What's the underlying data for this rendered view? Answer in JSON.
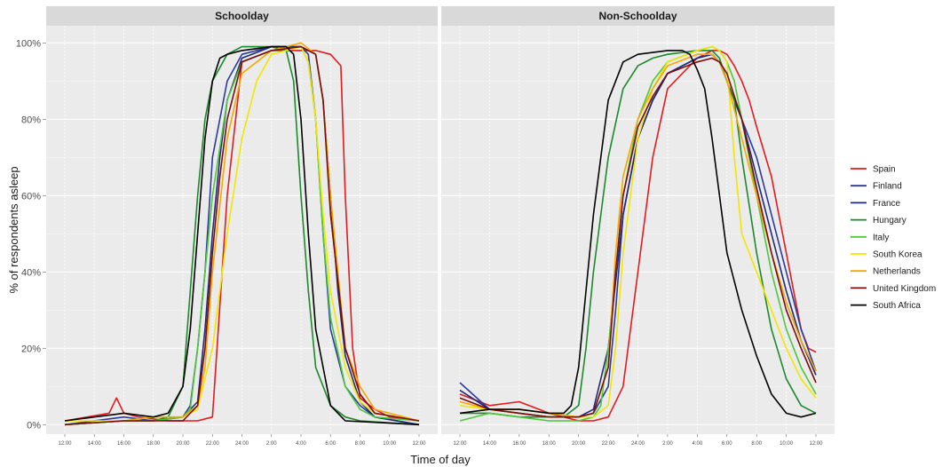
{
  "chart_data": {
    "type": "line",
    "xlabel": "Time of day",
    "ylabel": "% of respondents asleep",
    "ylim": [
      0,
      100
    ],
    "y_ticks": [
      0,
      20,
      40,
      60,
      80,
      100
    ],
    "y_tick_labels": [
      "0%",
      "20%",
      "40%",
      "60%",
      "80%",
      "100%"
    ],
    "x_tick_labels": [
      "12:00",
      "14:00",
      "16:00",
      "18:00",
      "20:00",
      "22:00",
      "24:00",
      "2:00",
      "4:00",
      "6:00",
      "8:00",
      "10:00",
      "12:00"
    ],
    "x_tick_hours": [
      12,
      14,
      16,
      18,
      20,
      22,
      24,
      26,
      28,
      30,
      32,
      34,
      36
    ],
    "xlim_hours": [
      12,
      36
    ],
    "legend_position": "right",
    "legend_entries": [
      "Spain",
      "Finland",
      "France",
      "Hungary",
      "Italy",
      "South Korea",
      "Netherlands",
      "United Kingdom",
      "South Africa"
    ],
    "colors": {
      "Spain": "#e41a1c",
      "Finland": "#2b3a9e",
      "France": "#1f2a7a",
      "Hungary": "#1a8a2a",
      "Italy": "#4cc83a",
      "South Korea": "#f2e600",
      "Netherlands": "#f5a700",
      "United Kingdom": "#7a0d0d",
      "South Africa": "#000000"
    },
    "panels": [
      {
        "title": "Schoolday",
        "series": [
          {
            "name": "Spain",
            "hours": [
              12,
              15,
              15.5,
              16,
              17,
              19,
              20,
              21,
              22,
              23,
              24,
              26,
              28,
              29,
              30,
              30.7,
              31,
              31.5,
              32,
              33,
              34,
              36
            ],
            "values": [
              1,
              3,
              7,
              3,
              2,
              1,
              1,
              1,
              2,
              60,
              95,
              98,
              98,
              98,
              97,
              94,
              60,
              20,
              7,
              4,
              2,
              1
            ]
          },
          {
            "name": "Finland",
            "hours": [
              12,
              16,
              18,
              20,
              20.5,
              21,
              21.5,
              22,
              23,
              24,
              26,
              28,
              28.5,
              29,
              29.5,
              30,
              31,
              32,
              33,
              36
            ],
            "values": [
              0,
              2,
              1,
              2,
              5,
              20,
              40,
              70,
              90,
              97,
              99,
              99,
              97,
              80,
              50,
              25,
              10,
              5,
              2,
              0
            ]
          },
          {
            "name": "France",
            "hours": [
              12,
              16,
              18,
              20,
              21,
              21.5,
              22,
              22.5,
              23,
              24,
              26,
              28,
              29,
              29.5,
              30,
              30.5,
              31,
              32,
              33,
              36
            ],
            "values": [
              0,
              1,
              1,
              2,
              6,
              25,
              50,
              70,
              85,
              96,
              99,
              99,
              97,
              85,
              60,
              35,
              18,
              6,
              2,
              0
            ]
          },
          {
            "name": "Hungary",
            "hours": [
              12,
              16,
              18,
              19,
              20,
              20.5,
              21,
              21.5,
              22,
              23,
              24,
              26,
              27,
              27.5,
              28,
              28.5,
              29,
              30,
              31,
              32,
              36
            ],
            "values": [
              0,
              1,
              1,
              2,
              10,
              35,
              60,
              80,
              90,
              97,
              99,
              99,
              98,
              90,
              60,
              35,
              15,
              5,
              2,
              1,
              0
            ]
          },
          {
            "name": "Italy",
            "hours": [
              12,
              16,
              18,
              20,
              20.5,
              21,
              22,
              23,
              24,
              26,
              28,
              28.5,
              29,
              29.5,
              30,
              31,
              32,
              33,
              36
            ],
            "values": [
              0,
              1,
              1,
              2,
              4,
              20,
              60,
              85,
              95,
              98,
              99,
              95,
              80,
              50,
              28,
              10,
              4,
              2,
              1
            ]
          },
          {
            "name": "South Korea",
            "hours": [
              12,
              16,
              18,
              20,
              21,
              22,
              23,
              24,
              25,
              26,
              28,
              28.5,
              29,
              29.5,
              30,
              31,
              32,
              33,
              36
            ],
            "values": [
              1,
              1,
              2,
              2,
              4,
              20,
              50,
              75,
              90,
              97,
              99,
              95,
              80,
              55,
              35,
              15,
              6,
              3,
              1
            ]
          },
          {
            "name": "Netherlands",
            "hours": [
              12,
              16,
              18,
              20,
              21,
              21.5,
              22,
              23,
              24,
              26,
              28,
              29,
              29.5,
              30,
              30.5,
              31,
              32,
              33,
              36
            ],
            "values": [
              0,
              1,
              2,
              2,
              5,
              15,
              40,
              75,
              92,
              98,
              100,
              97,
              85,
              60,
              40,
              20,
              10,
              4,
              1
            ]
          },
          {
            "name": "United Kingdom",
            "hours": [
              12,
              16,
              18,
              20,
              21,
              21.5,
              22,
              22.5,
              23,
              24,
              26,
              28,
              29,
              29.5,
              30,
              31,
              32,
              33,
              36
            ],
            "values": [
              0,
              1,
              1,
              1,
              5,
              20,
              45,
              65,
              80,
              95,
              98,
              99,
              97,
              85,
              55,
              20,
              8,
              3,
              1
            ]
          },
          {
            "name": "South Africa",
            "hours": [
              12,
              16,
              18,
              19,
              20,
              20.5,
              21,
              21.5,
              22,
              22.5,
              23,
              24,
              26,
              27,
              27.5,
              28,
              28.5,
              29,
              30,
              31,
              36
            ],
            "values": [
              1,
              3,
              2,
              3,
              10,
              25,
              50,
              75,
              90,
              96,
              97,
              98,
              99,
              99,
              97,
              80,
              50,
              25,
              5,
              1,
              0
            ]
          }
        ]
      },
      {
        "title": "Non-Schoolday",
        "series": [
          {
            "name": "Spain",
            "hours": [
              12,
              14,
              16,
              18,
              20,
              21,
              22,
              23,
              24,
              25,
              26,
              28,
              29,
              29.5,
              30,
              30.5,
              31,
              31.5,
              32,
              33,
              33.5,
              34,
              34.5,
              35,
              35.5,
              36
            ],
            "values": [
              8,
              5,
              6,
              3,
              1,
              1,
              2,
              10,
              40,
              70,
              88,
              96,
              98,
              98,
              97,
              94,
              90,
              85,
              78,
              65,
              55,
              45,
              35,
              25,
              20,
              19
            ]
          },
          {
            "name": "Finland",
            "hours": [
              12,
              14,
              16,
              18,
              20,
              21,
              22,
              22.5,
              23,
              24,
              25,
              26,
              28,
              29,
              29.5,
              30,
              30.5,
              31,
              32,
              33,
              34,
              35,
              36
            ],
            "values": [
              11,
              4,
              3,
              2,
              2,
              3,
              10,
              30,
              55,
              75,
              85,
              92,
              96,
              97,
              95,
              90,
              85,
              80,
              70,
              55,
              40,
              25,
              14
            ]
          },
          {
            "name": "France",
            "hours": [
              12,
              14,
              16,
              18,
              20,
              21,
              22,
              23,
              24,
              25,
              26,
              28,
              29,
              29.5,
              30,
              31,
              32,
              33,
              34,
              35,
              36
            ],
            "values": [
              9,
              4,
              3,
              2,
              2,
              4,
              20,
              55,
              75,
              85,
              92,
              96,
              97,
              95,
              90,
              80,
              65,
              50,
              35,
              22,
              13
            ]
          },
          {
            "name": "Hungary",
            "hours": [
              12,
              14,
              16,
              18,
              19,
              20,
              20.5,
              21,
              22,
              23,
              24,
              25,
              26,
              28,
              29,
              29.5,
              30,
              30.5,
              31,
              32,
              33,
              34,
              35,
              36
            ],
            "values": [
              3,
              3,
              2,
              2,
              2,
              5,
              20,
              40,
              70,
              88,
              94,
              96,
              97,
              98,
              98,
              96,
              90,
              85,
              70,
              45,
              25,
              12,
              5,
              3
            ]
          },
          {
            "name": "Italy",
            "hours": [
              12,
              14,
              16,
              18,
              20,
              21,
              21.5,
              22,
              23,
              24,
              25,
              26,
              28,
              29,
              29.5,
              30,
              30.5,
              31,
              32,
              33,
              34,
              35,
              36
            ],
            "values": [
              1,
              3,
              2,
              1,
              1,
              2,
              5,
              20,
              60,
              80,
              90,
              95,
              98,
              99,
              98,
              95,
              90,
              80,
              60,
              40,
              25,
              15,
              8
            ]
          },
          {
            "name": "South Korea",
            "hours": [
              12,
              14,
              16,
              18,
              20,
              21,
              22,
              22.5,
              23,
              24,
              25,
              26,
              28,
              29,
              29.5,
              30,
              30.5,
              31,
              32,
              33,
              34,
              35,
              36
            ],
            "values": [
              5,
              4,
              3,
              2,
              2,
              2,
              5,
              20,
              45,
              75,
              88,
              95,
              98,
              99,
              98,
              95,
              70,
              50,
              40,
              30,
              20,
              12,
              7
            ]
          },
          {
            "name": "Netherlands",
            "hours": [
              12,
              14,
              16,
              18,
              20,
              21,
              22,
              22.5,
              23,
              24,
              25,
              26,
              28,
              29,
              29.5,
              30,
              31,
              32,
              33,
              34,
              35,
              36
            ],
            "values": [
              6,
              4,
              4,
              3,
              2,
              3,
              15,
              45,
              65,
              80,
              88,
              94,
              97,
              97,
              95,
              90,
              75,
              60,
              45,
              32,
              22,
              14
            ]
          },
          {
            "name": "United Kingdom",
            "hours": [
              12,
              14,
              16,
              18,
              20,
              21,
              22,
              22.5,
              23,
              24,
              25,
              26,
              28,
              29,
              29.5,
              30,
              31,
              32,
              33,
              34,
              35,
              36
            ],
            "values": [
              7,
              4,
              3,
              2,
              2,
              3,
              15,
              40,
              60,
              78,
              86,
              92,
              95,
              96,
              95,
              92,
              80,
              62,
              45,
              30,
              20,
              11
            ]
          },
          {
            "name": "South Africa",
            "hours": [
              12,
              14,
              16,
              18,
              19,
              19.5,
              20,
              20.5,
              21,
              21.5,
              22,
              23,
              24,
              26,
              27,
              27.5,
              28,
              28.5,
              29,
              29.5,
              30,
              31,
              32,
              33,
              34,
              35,
              36
            ],
            "values": [
              3,
              4,
              4,
              3,
              3,
              5,
              15,
              35,
              55,
              70,
              85,
              95,
              97,
              98,
              98,
              97,
              93,
              88,
              75,
              60,
              45,
              30,
              18,
              8,
              3,
              2,
              3
            ]
          }
        ]
      }
    ]
  }
}
